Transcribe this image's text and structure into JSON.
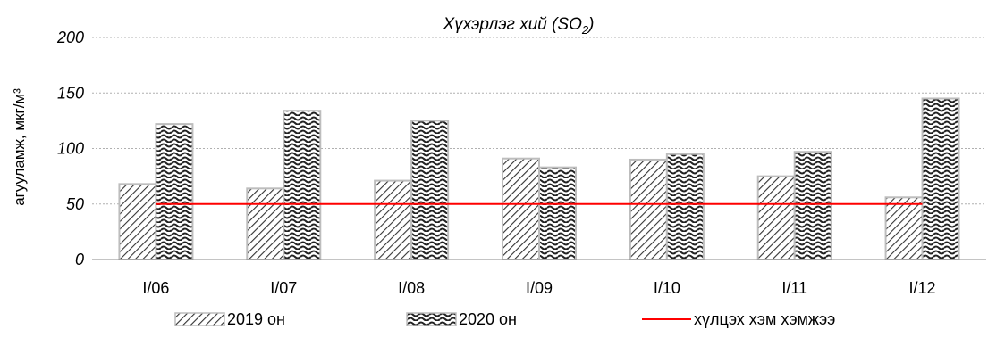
{
  "chart_data": {
    "type": "bar",
    "title": "Хүхэрлэг хий (SO",
    "title_sub": "2",
    "title_close": ")",
    "ylabel": "агууламж, мкг/м³",
    "xlabel": "",
    "ylim": [
      0,
      200
    ],
    "yticks": [
      "0",
      "50",
      "100",
      "150",
      "200"
    ],
    "categories": [
      "I/06",
      "I/07",
      "I/08",
      "I/09",
      "I/10",
      "I/11",
      "I/12"
    ],
    "series": [
      {
        "name": "2019 он",
        "values": [
          68,
          64,
          71,
          91,
          90,
          75,
          56
        ],
        "pattern": "diagonal-hatch"
      },
      {
        "name": "2020 он",
        "values": [
          122,
          134,
          125,
          83,
          95,
          97,
          145
        ],
        "pattern": "wave"
      }
    ],
    "reference_line": {
      "name": "хүлцэх хэм хэмжээ",
      "value": 50,
      "color": "#ff0000"
    },
    "grid": "horizontal-dotted",
    "legend_position": "bottom"
  }
}
